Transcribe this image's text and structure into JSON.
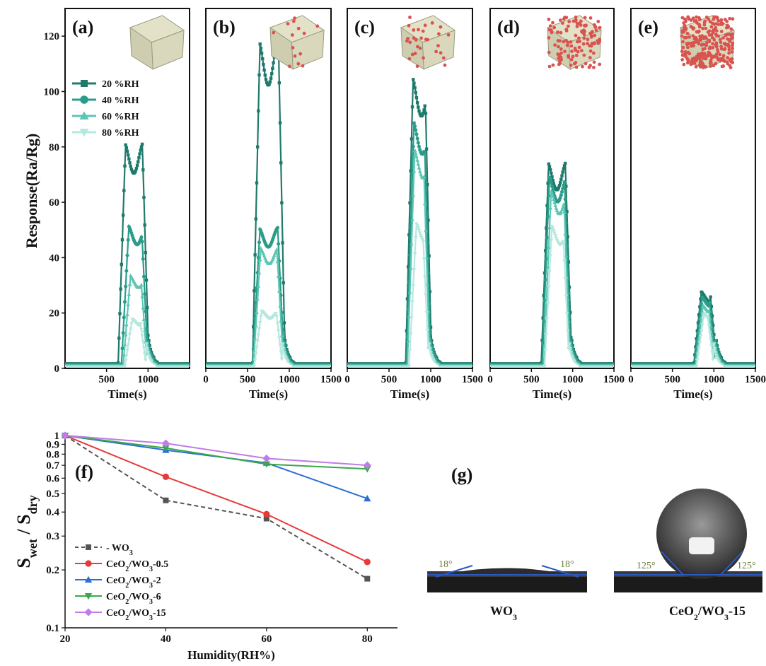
{
  "figure": {
    "top_panels": [
      {
        "label": "(a)",
        "show_x_ticks": [
          "500",
          "1000"
        ],
        "cube": "plain"
      },
      {
        "label": "(b)",
        "show_x_ticks": [
          "0",
          "500",
          "1000",
          "1500"
        ],
        "cube": "sparse"
      },
      {
        "label": "(c)",
        "show_x_ticks": [
          "0",
          "500",
          "1000",
          "1500"
        ],
        "cube": "medium"
      },
      {
        "label": "(d)",
        "show_x_ticks": [
          "0",
          "500",
          "1000",
          "1500"
        ],
        "cube": "dense"
      },
      {
        "label": "(e)",
        "show_x_ticks": [
          "0",
          "500",
          "1000",
          "1500"
        ],
        "cube": "very-dense"
      }
    ],
    "top_xlabels": [
      "Time(s)",
      "Time(s)",
      "Time(s)",
      "Time(s)",
      "Time(s)"
    ],
    "top_ylabel": "Response(Ra/Rg)",
    "top_yticks": [
      "0",
      "20",
      "40",
      "60",
      "80",
      "100",
      "120"
    ],
    "top_legend": [
      "20 %RH",
      "40 %RH",
      "60 %RH",
      "80 %RH"
    ],
    "bottom": {
      "panel_label": "(f)",
      "ylabel_main": "S",
      "ylabel_sub1": "wet",
      "ylabel_slash": "/",
      "ylabel_main2": "S",
      "ylabel_sub2": "dry",
      "xlabel": "Humidity(RH%)",
      "yticks": [
        "0.1",
        "0.2",
        "0.3",
        "0.4",
        "0.5",
        "0.6",
        "0.7",
        "0.8",
        "0.9",
        "1"
      ],
      "xticks": [
        "20",
        "40",
        "60",
        "80"
      ],
      "legend": [
        {
          "text": "- WO",
          "sub": "3"
        },
        {
          "text": "CeO",
          "sub": "2",
          "rest": "/WO",
          "sub2": "3",
          "tail": "-0.5"
        },
        {
          "text": "CeO",
          "sub": "2",
          "rest": "/WO",
          "sub2": "3",
          "tail": "-2"
        },
        {
          "text": "CeO",
          "sub": "2",
          "rest": "/WO",
          "sub2": "3",
          "tail": "-6"
        },
        {
          "text": "CeO",
          "sub": "2",
          "rest": "/WO",
          "sub2": "3",
          "tail": "-15"
        }
      ]
    },
    "g_panel": {
      "label": "(g)",
      "left_caption": "WO",
      "left_caption_sub": "3",
      "right_caption": "CeO",
      "right_caption_sub": "2",
      "right_caption_rest": "/WO",
      "right_caption_sub2": "3",
      "right_caption_tail": "-15",
      "left_angle_l": "18°",
      "left_angle_r": "18°",
      "right_angle_l": "125°",
      "right_angle_r": "125°"
    },
    "colors": {
      "rh20": "#1f7a6b",
      "rh40": "#2a9d8a",
      "rh60": "#5cc6b4",
      "rh80": "#b5e8de",
      "wo3": "#555555",
      "ce05": "#e63a3a",
      "ce2": "#2a6fd6",
      "ce6": "#3aa84a",
      "ce15": "#c07ce8"
    }
  },
  "chart_data": [
    {
      "type": "line",
      "panel": "(a)",
      "xlabel": "Time(s)",
      "ylabel": "Response(Ra/Rg)",
      "xlim": [
        0,
        1500
      ],
      "ylim": [
        0,
        130
      ],
      "series": [
        {
          "name": "20 %RH",
          "pulse": {
            "start": 640,
            "end": 1010,
            "peak": 82
          }
        },
        {
          "name": "40 %RH",
          "pulse": {
            "start": 680,
            "end": 1000,
            "peak": 52
          }
        },
        {
          "name": "60 %RH",
          "pulse": {
            "start": 700,
            "end": 990,
            "peak": 34
          }
        },
        {
          "name": "80 %RH",
          "pulse": {
            "start": 720,
            "end": 980,
            "peak": 18
          }
        }
      ]
    },
    {
      "type": "line",
      "panel": "(b)",
      "xlabel": "Time(s)",
      "xlim": [
        0,
        1500
      ],
      "ylim": [
        0,
        130
      ],
      "series": [
        {
          "name": "20 %RH",
          "pulse": {
            "start": 560,
            "end": 950,
            "peak": 119
          }
        },
        {
          "name": "40 %RH",
          "pulse": {
            "start": 560,
            "end": 940,
            "peak": 51
          }
        },
        {
          "name": "60 %RH",
          "pulse": {
            "start": 570,
            "end": 930,
            "peak": 44
          }
        },
        {
          "name": "80 %RH",
          "pulse": {
            "start": 580,
            "end": 920,
            "peak": 21
          }
        }
      ]
    },
    {
      "type": "line",
      "panel": "(c)",
      "xlabel": "Time(s)",
      "xlim": [
        0,
        1500
      ],
      "ylim": [
        0,
        130
      ],
      "series": [
        {
          "name": "20 %RH",
          "pulse": {
            "start": 700,
            "end": 1010,
            "peak": 106
          }
        },
        {
          "name": "40 %RH",
          "pulse": {
            "start": 710,
            "end": 1000,
            "peak": 90
          }
        },
        {
          "name": "60 %RH",
          "pulse": {
            "start": 720,
            "end": 990,
            "peak": 80
          }
        },
        {
          "name": "80 %RH",
          "pulse": {
            "start": 740,
            "end": 980,
            "peak": 53
          }
        }
      ]
    },
    {
      "type": "line",
      "panel": "(d)",
      "xlabel": "Time(s)",
      "xlim": [
        0,
        1500
      ],
      "ylim": [
        0,
        130
      ],
      "series": [
        {
          "name": "20 %RH",
          "pulse": {
            "start": 620,
            "end": 990,
            "peak": 75
          }
        },
        {
          "name": "40 %RH",
          "pulse": {
            "start": 630,
            "end": 980,
            "peak": 70
          }
        },
        {
          "name": "60 %RH",
          "pulse": {
            "start": 650,
            "end": 970,
            "peak": 65
          }
        },
        {
          "name": "80 %RH",
          "pulse": {
            "start": 660,
            "end": 960,
            "peak": 52
          }
        }
      ]
    },
    {
      "type": "line",
      "panel": "(e)",
      "xlabel": "Time(s)",
      "xlim": [
        0,
        1500
      ],
      "ylim": [
        0,
        130
      ],
      "series": [
        {
          "name": "20 %RH",
          "pulse": {
            "start": 760,
            "end": 1030,
            "peak": 28
          }
        },
        {
          "name": "40 %RH",
          "pulse": {
            "start": 770,
            "end": 1020,
            "peak": 26
          }
        },
        {
          "name": "60 %RH",
          "pulse": {
            "start": 780,
            "end": 1010,
            "peak": 23
          }
        },
        {
          "name": "80 %RH",
          "pulse": {
            "start": 790,
            "end": 1000,
            "peak": 20
          }
        }
      ]
    },
    {
      "type": "line",
      "panel": "(f)",
      "xlabel": "Humidity(RH%)",
      "ylabel": "S_wet / S_dry",
      "yscale": "log",
      "xlim": [
        20,
        86
      ],
      "ylim": [
        0.1,
        1
      ],
      "x": [
        20,
        40,
        60,
        80
      ],
      "series": [
        {
          "name": "WO3",
          "values": [
            1.0,
            0.46,
            0.37,
            0.18
          ]
        },
        {
          "name": "CeO2/WO3-0.5",
          "values": [
            1.0,
            0.61,
            0.39,
            0.22
          ]
        },
        {
          "name": "CeO2/WO3-2",
          "values": [
            1.0,
            0.84,
            0.72,
            0.47
          ]
        },
        {
          "name": "CeO2/WO3-6",
          "values": [
            1.0,
            0.86,
            0.71,
            0.67
          ]
        },
        {
          "name": "CeO2/WO3-15",
          "values": [
            1.0,
            0.91,
            0.76,
            0.7
          ]
        }
      ]
    }
  ]
}
